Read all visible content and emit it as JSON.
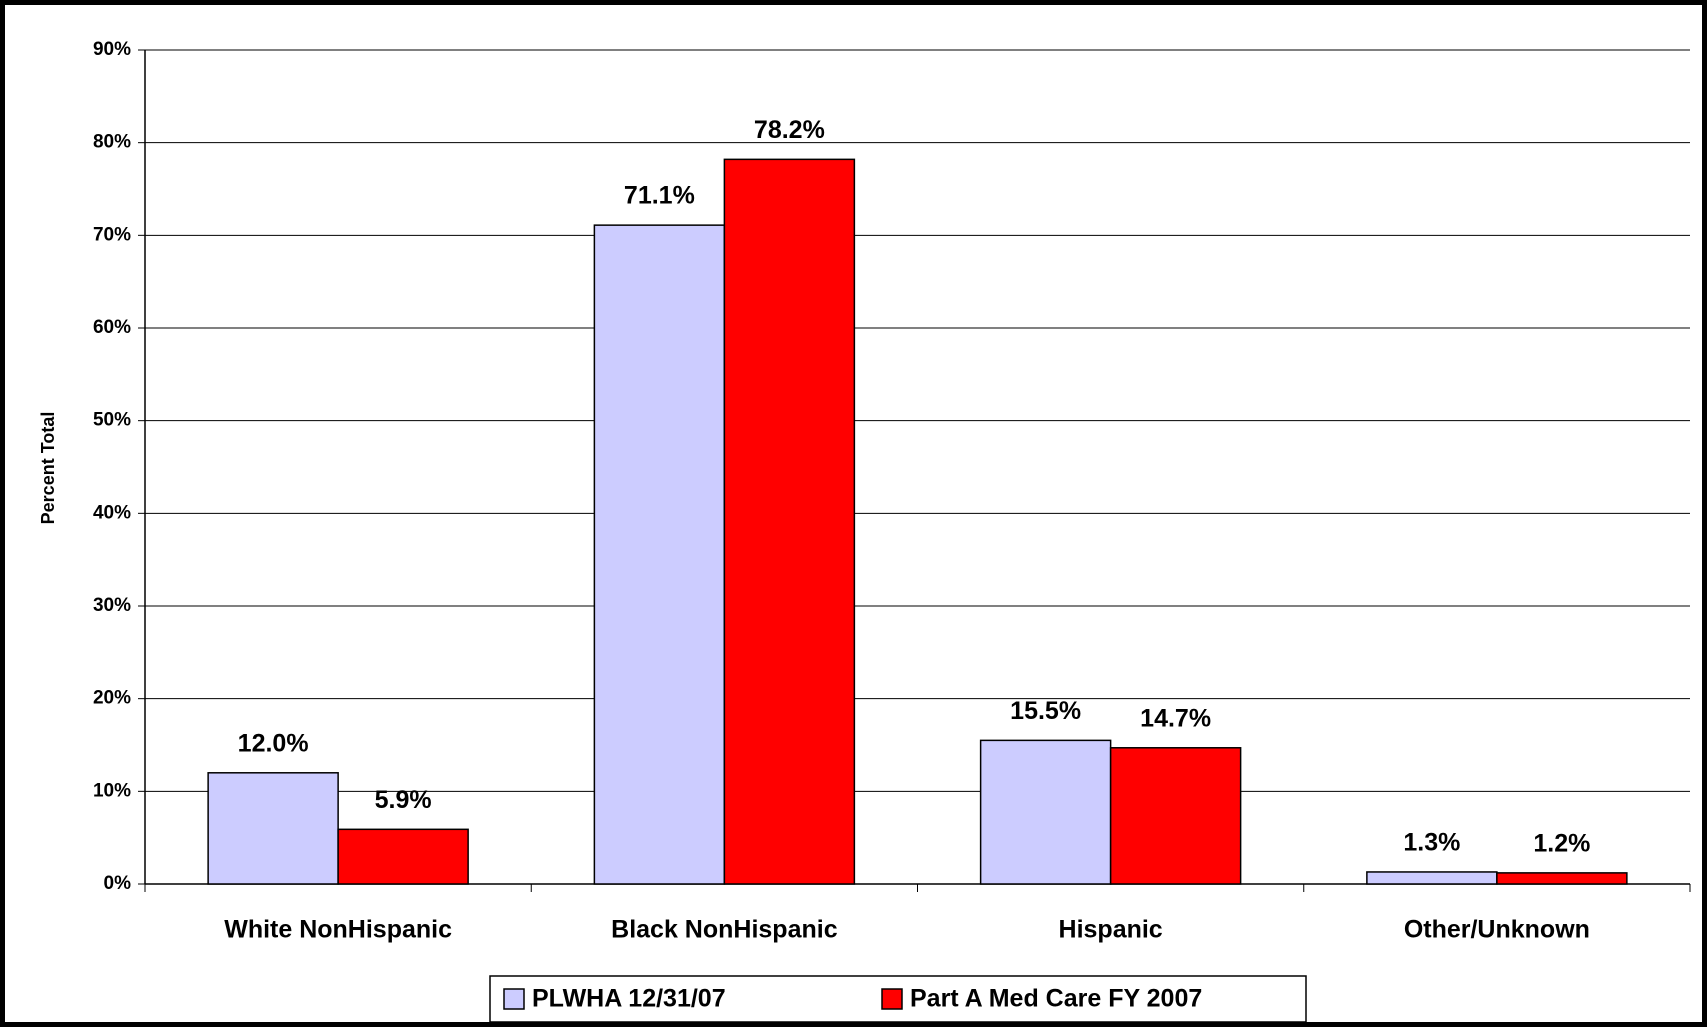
{
  "chart_data": {
    "type": "bar",
    "y_label": "Percent Total",
    "categories": [
      "White NonHispanic",
      "Black NonHispanic",
      "Hispanic",
      "Other/Unknown"
    ],
    "series": [
      {
        "name": "PLWHA 12/31/07",
        "color": "#ccccff",
        "values": [
          12.0,
          71.1,
          15.5,
          1.3
        ],
        "value_labels": [
          "12.0%",
          "71.1%",
          "15.5%",
          "1.3%"
        ]
      },
      {
        "name": "Part A Med Care FY 2007",
        "color": "#ff0000",
        "values": [
          5.9,
          78.2,
          14.7,
          1.2
        ],
        "value_labels": [
          "5.9%",
          "78.2%",
          "14.7%",
          "1.2%"
        ]
      }
    ],
    "ylim": [
      0,
      90
    ],
    "yticks": [
      {
        "value": 0,
        "label": "0%"
      },
      {
        "value": 10,
        "label": "10%"
      },
      {
        "value": 20,
        "label": "20%"
      },
      {
        "value": 30,
        "label": "30%"
      },
      {
        "value": 40,
        "label": "40%"
      },
      {
        "value": 50,
        "label": "50%"
      },
      {
        "value": 60,
        "label": "60%"
      },
      {
        "value": 70,
        "label": "70%"
      },
      {
        "value": 80,
        "label": "80%"
      },
      {
        "value": 90,
        "label": "90%"
      }
    ],
    "grid": true,
    "legend": "bottom"
  }
}
